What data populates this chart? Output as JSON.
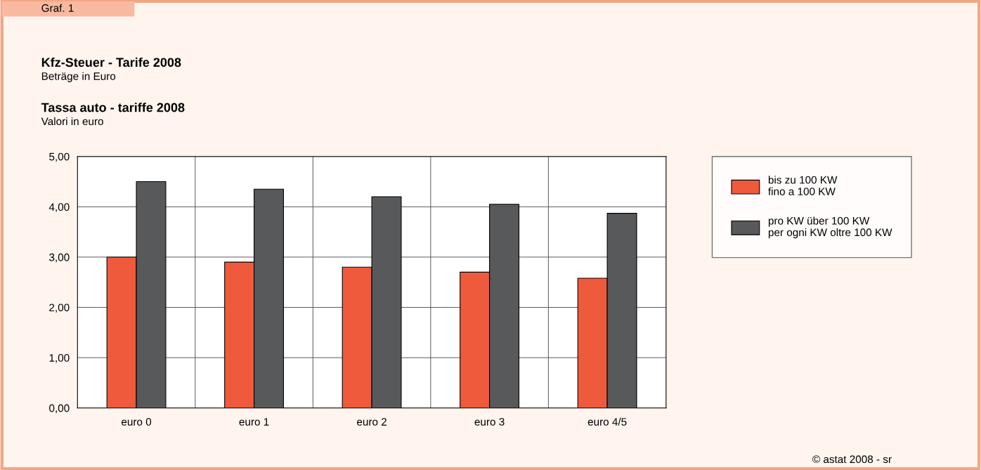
{
  "chart_data": {
    "type": "bar",
    "title": "Kfz-Steuer - Tarife 2008",
    "subtitle": "Beträge in Euro",
    "annotations": [
      "Graf. 1",
      "Tassa auto - tariffe 2008",
      "Valori in euro",
      "© astat 2008 - sr"
    ],
    "categories": [
      "euro 0",
      "euro 1",
      "euro 2",
      "euro 3",
      "euro 4/5"
    ],
    "series": [
      {
        "name": "bis zu 100 KW\nfino a 100 KW",
        "color": "#f05a3c",
        "values": [
          3.0,
          2.9,
          2.8,
          2.7,
          2.58
        ]
      },
      {
        "name": "pro KW über 100 KW\nper ogni KW oltre 100 KW",
        "color": "#58595b",
        "values": [
          4.5,
          4.35,
          4.2,
          4.05,
          3.87
        ]
      }
    ],
    "ylim": [
      0,
      5
    ],
    "yticks": [
      {
        "value": 0,
        "label": "0,00"
      },
      {
        "value": 1,
        "label": "1,00"
      },
      {
        "value": 2,
        "label": "2,00"
      },
      {
        "value": 3,
        "label": "3,00"
      },
      {
        "value": 4,
        "label": "4,00"
      },
      {
        "value": 5,
        "label": "5,00"
      }
    ],
    "grid": true,
    "legend": "right"
  }
}
